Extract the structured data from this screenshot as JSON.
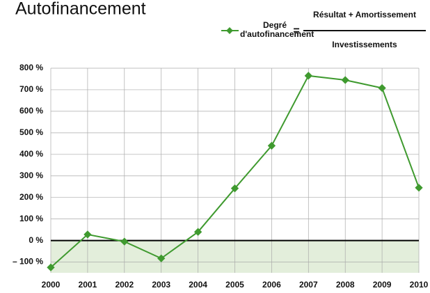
{
  "chart_data": {
    "type": "line",
    "title": "Autofinancement",
    "categories": [
      "2000",
      "2001",
      "2002",
      "2003",
      "2004",
      "2005",
      "2006",
      "2007",
      "2008",
      "2009",
      "2010"
    ],
    "series": [
      {
        "name": "Degré d'autofinancement",
        "color": "#3f9a2f",
        "values": [
          -125,
          28,
          -5,
          -83,
          40,
          242,
          440,
          765,
          745,
          708,
          245
        ]
      }
    ],
    "formula": {
      "equals": "=",
      "numerator": "Résultat + Amortissement",
      "denominator": "Investissements"
    },
    "ylim": [
      -150,
      800
    ],
    "yticks": [
      {
        "value": -100,
        "label": "– 100 %"
      },
      {
        "value": 0,
        "label": "0 %"
      },
      {
        "value": 100,
        "label": "100 %"
      },
      {
        "value": 200,
        "label": "200 %"
      },
      {
        "value": 300,
        "label": "300 %"
      },
      {
        "value": 400,
        "label": "400 %"
      },
      {
        "value": 500,
        "label": "500 %"
      },
      {
        "value": 600,
        "label": "600 %"
      },
      {
        "value": 700,
        "label": "700 %"
      },
      {
        "value": 800,
        "label": "800 %"
      }
    ],
    "grid": true,
    "negative_fill": "#e3eedb"
  }
}
